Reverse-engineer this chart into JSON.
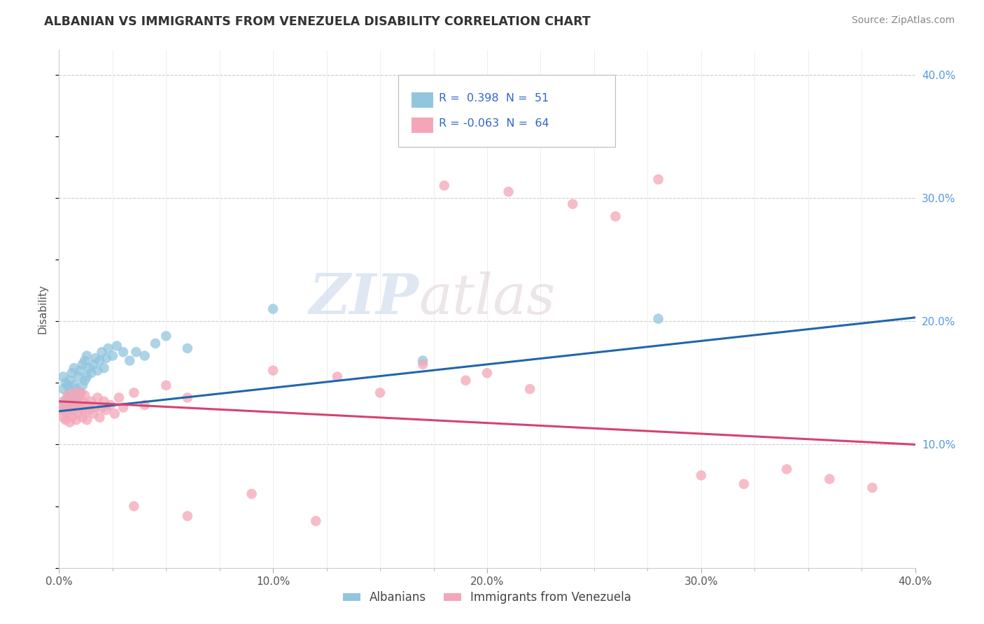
{
  "title": "ALBANIAN VS IMMIGRANTS FROM VENEZUELA DISABILITY CORRELATION CHART",
  "source": "Source: ZipAtlas.com",
  "ylabel_label": "Disability",
  "xlim": [
    0.0,
    0.4
  ],
  "ylim": [
    0.0,
    0.42
  ],
  "blue_color": "#92c5de",
  "pink_color": "#f4a6b8",
  "line_blue": "#2166ac",
  "line_pink": "#d6436e",
  "watermark_zip": "ZIP",
  "watermark_atlas": "atlas",
  "blue_scatter_x": [
    0.001,
    0.002,
    0.002,
    0.003,
    0.003,
    0.004,
    0.004,
    0.004,
    0.005,
    0.005,
    0.005,
    0.006,
    0.006,
    0.006,
    0.007,
    0.007,
    0.007,
    0.008,
    0.008,
    0.009,
    0.009,
    0.01,
    0.01,
    0.011,
    0.011,
    0.012,
    0.012,
    0.013,
    0.013,
    0.014,
    0.015,
    0.016,
    0.017,
    0.018,
    0.019,
    0.02,
    0.021,
    0.022,
    0.023,
    0.025,
    0.027,
    0.03,
    0.033,
    0.036,
    0.04,
    0.045,
    0.05,
    0.06,
    0.1,
    0.17,
    0.28
  ],
  "blue_scatter_y": [
    0.13,
    0.145,
    0.155,
    0.135,
    0.15,
    0.128,
    0.138,
    0.148,
    0.133,
    0.143,
    0.152,
    0.13,
    0.14,
    0.158,
    0.135,
    0.148,
    0.162,
    0.132,
    0.145,
    0.138,
    0.155,
    0.142,
    0.16,
    0.148,
    0.165,
    0.152,
    0.168,
    0.155,
    0.172,
    0.162,
    0.158,
    0.165,
    0.17,
    0.16,
    0.168,
    0.175,
    0.162,
    0.17,
    0.178,
    0.172,
    0.18,
    0.175,
    0.168,
    0.175,
    0.172,
    0.182,
    0.188,
    0.178,
    0.21,
    0.168,
    0.202
  ],
  "pink_scatter_x": [
    0.001,
    0.002,
    0.002,
    0.003,
    0.003,
    0.004,
    0.004,
    0.005,
    0.005,
    0.006,
    0.006,
    0.007,
    0.007,
    0.008,
    0.008,
    0.009,
    0.009,
    0.01,
    0.01,
    0.011,
    0.011,
    0.012,
    0.012,
    0.013,
    0.013,
    0.014,
    0.015,
    0.016,
    0.017,
    0.018,
    0.019,
    0.02,
    0.021,
    0.022,
    0.024,
    0.026,
    0.028,
    0.03,
    0.035,
    0.04,
    0.05,
    0.06,
    0.1,
    0.13,
    0.15,
    0.17,
    0.19,
    0.2,
    0.22,
    0.18,
    0.21,
    0.24,
    0.26,
    0.28,
    0.3,
    0.32,
    0.34,
    0.36,
    0.38,
    0.035,
    0.06,
    0.09,
    0.12
  ],
  "pink_scatter_y": [
    0.128,
    0.122,
    0.135,
    0.12,
    0.13,
    0.125,
    0.14,
    0.118,
    0.132,
    0.122,
    0.138,
    0.128,
    0.142,
    0.12,
    0.132,
    0.125,
    0.138,
    0.13,
    0.142,
    0.122,
    0.135,
    0.128,
    0.14,
    0.12,
    0.132,
    0.128,
    0.135,
    0.125,
    0.13,
    0.138,
    0.122,
    0.13,
    0.135,
    0.128,
    0.132,
    0.125,
    0.138,
    0.13,
    0.142,
    0.132,
    0.148,
    0.138,
    0.16,
    0.155,
    0.142,
    0.165,
    0.152,
    0.158,
    0.145,
    0.31,
    0.305,
    0.295,
    0.285,
    0.315,
    0.075,
    0.068,
    0.08,
    0.072,
    0.065,
    0.05,
    0.042,
    0.06,
    0.038
  ]
}
